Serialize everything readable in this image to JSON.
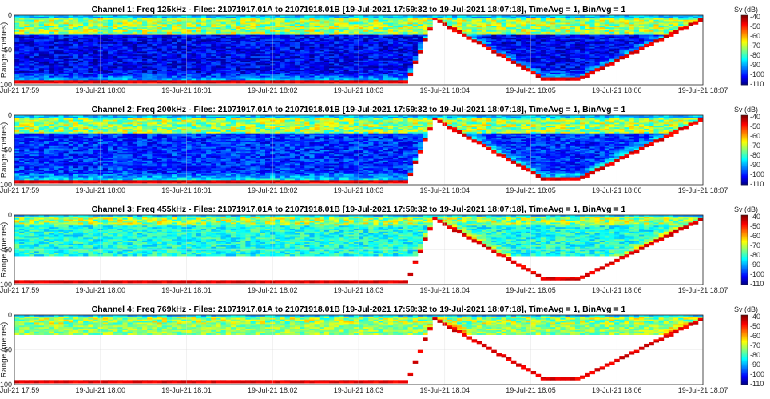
{
  "chart_data": [
    {
      "type": "heatmap",
      "title": "Channel 1: Freq 125kHz - Files: 21071917.01A to 21071918.01B  [19-Jul-2021 17:59:32 to 19-Jul-2021 18:07:18], TimeAvg = 1, BinAvg = 1",
      "frequency_khz": 125,
      "ylabel": "Range (metres)",
      "ylim": [
        0,
        100
      ],
      "y_ticks": [
        "0",
        "50",
        "100"
      ],
      "x_ticks": [
        "19-Jul-21 17:59",
        "19-Jul-21 18:00",
        "19-Jul-21 18:01",
        "19-Jul-21 18:02",
        "19-Jul-21 18:03",
        "19-Jul-21 18:04",
        "19-Jul-21 18:05",
        "19-Jul-21 18:06",
        "19-Jul-21 18:07"
      ],
      "colorbar": {
        "label": "Sv (dB)",
        "range": [
          -110,
          -40
        ],
        "ticks": [
          "-40",
          "-50",
          "-60",
          "-70",
          "-80",
          "-90",
          "-100",
          "-110"
        ],
        "colormap": "jet"
      },
      "seabed_profile_m": [
        [
          0,
          96
        ],
        [
          0.57,
          96
        ],
        [
          0.61,
          5
        ],
        [
          0.77,
          92
        ],
        [
          0.82,
          92
        ],
        [
          1.0,
          5
        ]
      ],
      "surface_layer_m": [
        5,
        28
      ],
      "signal_range_m": 100,
      "background_sv_db": -102
    },
    {
      "type": "heatmap",
      "title": "Channel 2: Freq 200kHz - Files: 21071917.01A to 21071918.01B  [19-Jul-2021 17:59:32 to 19-Jul-2021 18:07:18], TimeAvg = 1, BinAvg = 1",
      "frequency_khz": 200,
      "ylabel": "Range (metres)",
      "ylim": [
        0,
        100
      ],
      "y_ticks": [
        "0",
        "50",
        "100"
      ],
      "x_ticks": [
        "19-Jul-21 17:59",
        "19-Jul-21 18:00",
        "19-Jul-21 18:01",
        "19-Jul-21 18:02",
        "19-Jul-21 18:03",
        "19-Jul-21 18:04",
        "19-Jul-21 18:05",
        "19-Jul-21 18:06",
        "19-Jul-21 18:07"
      ],
      "colorbar": {
        "label": "Sv (dB)",
        "range": [
          -110,
          -40
        ],
        "ticks": [
          "-40",
          "-50",
          "-60",
          "-70",
          "-80",
          "-90",
          "-100",
          "-110"
        ],
        "colormap": "jet"
      },
      "seabed_profile_m": [
        [
          0,
          96
        ],
        [
          0.57,
          96
        ],
        [
          0.61,
          5
        ],
        [
          0.77,
          92
        ],
        [
          0.82,
          92
        ],
        [
          1.0,
          5
        ]
      ],
      "surface_layer_m": [
        5,
        25
      ],
      "signal_range_m": 100,
      "background_sv_db": -98
    },
    {
      "type": "heatmap",
      "title": "Channel 3: Freq 455kHz - Files: 21071917.01A to 21071918.01B  [19-Jul-2021 17:59:32 to 19-Jul-2021 18:07:18], TimeAvg = 1, BinAvg = 1",
      "frequency_khz": 455,
      "ylabel": "Range (metres)",
      "ylim": [
        0,
        100
      ],
      "y_ticks": [
        "0",
        "50",
        "100"
      ],
      "x_ticks": [
        "19-Jul-21 17:59",
        "19-Jul-21 18:00",
        "19-Jul-21 18:01",
        "19-Jul-21 18:02",
        "19-Jul-21 18:03",
        "19-Jul-21 18:04",
        "19-Jul-21 18:05",
        "19-Jul-21 18:06",
        "19-Jul-21 18:07"
      ],
      "colorbar": {
        "label": "Sv (dB)",
        "range": [
          -110,
          -40
        ],
        "ticks": [
          "-40",
          "-50",
          "-60",
          "-70",
          "-80",
          "-90",
          "-100",
          "-110"
        ],
        "colormap": "jet"
      },
      "seabed_profile_m": [
        [
          0,
          96
        ],
        [
          0.57,
          96
        ],
        [
          0.61,
          5
        ],
        [
          0.77,
          92
        ],
        [
          0.82,
          92
        ],
        [
          1.0,
          5
        ]
      ],
      "surface_layer_m": [
        3,
        15
      ],
      "signal_range_m": 58,
      "background_sv_db": -82
    },
    {
      "type": "heatmap",
      "title": "Channel 4: Freq 769kHz - Files: 21071917.01A to 21071918.01B  [19-Jul-2021 17:59:32 to 19-Jul-2021 18:07:18], TimeAvg = 1, BinAvg = 1",
      "frequency_khz": 769,
      "ylabel": "Range (metres)",
      "ylim": [
        0,
        100
      ],
      "y_ticks": [
        "0",
        "50",
        "100"
      ],
      "x_ticks": [
        "19-Jul-21 17:59",
        "19-Jul-21 18:00",
        "19-Jul-21 18:01",
        "19-Jul-21 18:02",
        "19-Jul-21 18:03",
        "19-Jul-21 18:04",
        "19-Jul-21 18:05",
        "19-Jul-21 18:06",
        "19-Jul-21 18:07"
      ],
      "colorbar": {
        "label": "Sv (dB)",
        "range": [
          -110,
          -40
        ],
        "ticks": [
          "-40",
          "-50",
          "-60",
          "-70",
          "-80",
          "-90",
          "-100",
          "-110"
        ],
        "colormap": "jet"
      },
      "seabed_profile_m": [
        [
          0,
          96
        ],
        [
          0.57,
          96
        ],
        [
          0.61,
          5
        ],
        [
          0.77,
          92
        ],
        [
          0.82,
          92
        ],
        [
          1.0,
          5
        ]
      ],
      "surface_layer_m": [
        3,
        14
      ],
      "signal_range_m": 28,
      "background_sv_db": -74
    }
  ]
}
